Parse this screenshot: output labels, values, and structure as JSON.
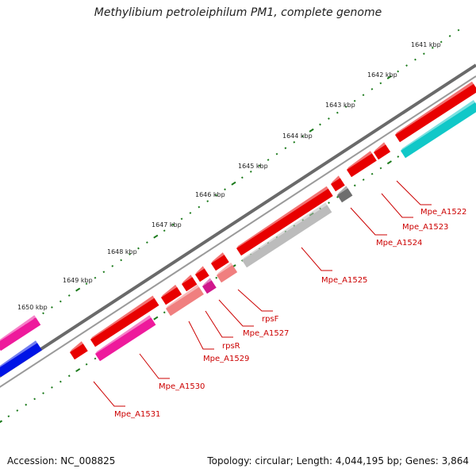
{
  "title": "Methylibium petroleiphilum PM1, complete genome",
  "accession": "Accession: NC_008825",
  "summary": "Topology: circular; Length: 4,044,195 bp; Genes: 3,864",
  "colors": {
    "background": "#ffffff",
    "backbone": "#6a6a6a",
    "tick": "#1b7a1b",
    "label": "#cc0000",
    "gene_red": "#e80000",
    "gene_pink": "#ee1a9c",
    "gene_salmon": "#f07f7f",
    "gene_gray": "#bcbcbc",
    "gene_darkgray": "#6e6e6e",
    "gene_blue": "#0014e6",
    "gene_cyan": "#10c8c8",
    "gene_magenta": "#d0168c"
  },
  "kbp_labels": [
    "1641 kbp",
    "1642 kbp",
    "1643 kbp",
    "1644 kbp",
    "1645 kbp",
    "1646 kbp",
    "1647 kbp",
    "1648 kbp",
    "1649 kbp",
    "1650 kbp"
  ],
  "gene_labels": [
    "Mpe_A1522",
    "Mpe_A1523",
    "Mpe_A1524",
    "Mpe_A1525",
    "rpsF",
    "Mpe_A1527",
    "rpsR",
    "Mpe_A1529",
    "Mpe_A1530",
    "Mpe_A1531"
  ]
}
